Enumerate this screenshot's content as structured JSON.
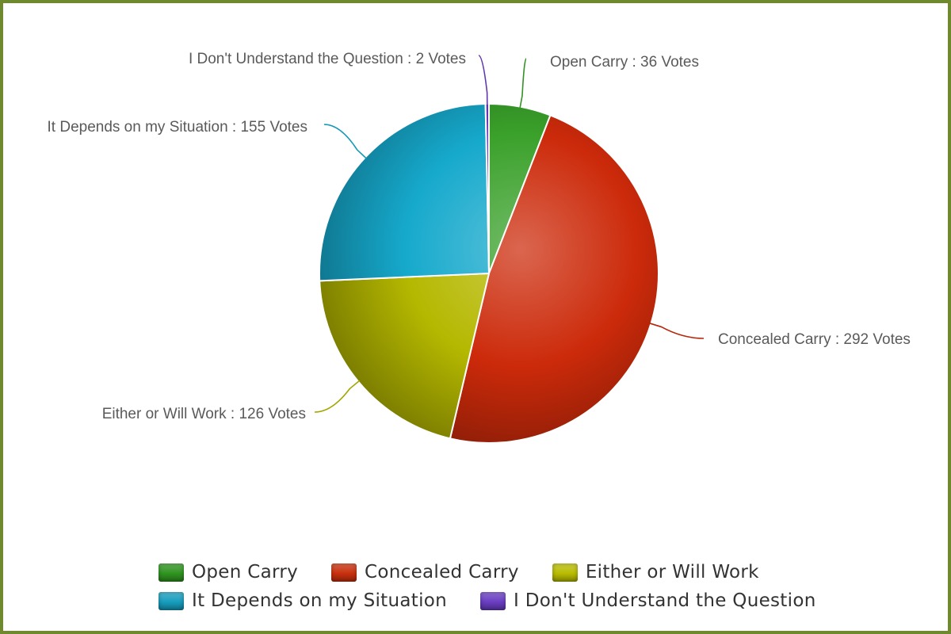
{
  "chart_data": {
    "type": "pie",
    "title": "",
    "label_format": "{name} : {value} Votes",
    "slices": [
      {
        "name": "Open Carry",
        "value": 36,
        "label": "Open Carry : 36 Votes",
        "color": "#3aa12a"
      },
      {
        "name": "Concealed Carry",
        "value": 292,
        "label": "Concealed Carry : 292 Votes",
        "color": "#cc2a0a"
      },
      {
        "name": "Either or Will Work",
        "value": 126,
        "label": "Either or Will Work : 126 Votes",
        "color": "#b5b800"
      },
      {
        "name": "It Depends on my Situation",
        "value": 155,
        "label": "It Depends on my Situation : 155 Votes",
        "color": "#16a9cc"
      },
      {
        "name": "I Don't Understand the Question",
        "value": 2,
        "label": "I Don't Understand the Question : 2 Votes",
        "color": "#6a3dc2"
      }
    ],
    "legend_position": "bottom",
    "legend": {
      "rows": [
        [
          {
            "label": "Open Carry",
            "color": "#2f9420"
          },
          {
            "label": "Concealed Carry",
            "color": "#c8300e"
          },
          {
            "label": "Either or Will Work",
            "color": "#b9bc00"
          }
        ],
        [
          {
            "label": "It Depends on my Situation",
            "color": "#179dbd"
          },
          {
            "label": "I Don't Understand the Question",
            "color": "#6a3dc2"
          }
        ]
      ]
    }
  },
  "frame_color": "#6f8a2e"
}
